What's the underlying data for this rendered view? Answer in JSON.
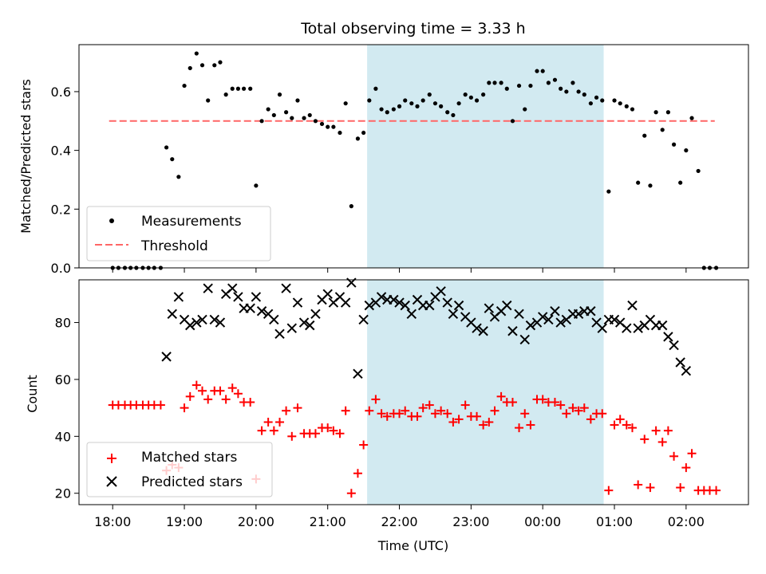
{
  "chart_data": [
    {
      "type": "scatter",
      "title": "Total observing time = 3.33 h",
      "ylabel": "Matched/Predicted stars",
      "ylim": [
        0,
        0.76
      ],
      "yticks": [
        "0.0",
        "0.2",
        "0.4",
        "0.6"
      ],
      "highlight_region": {
        "x": [
          3.55,
          6.85
        ],
        "color": "#add8e6"
      },
      "threshold": {
        "name": "Threshold",
        "value": 0.5,
        "x": [
          -0.05,
          8.4
        ],
        "color": "#ff6666"
      },
      "legend": {
        "position": "lower-left",
        "entries": [
          "Measurements",
          "Threshold"
        ]
      },
      "series": [
        {
          "name": "Measurements",
          "color": "#000000",
          "x": [
            0.0,
            0.08,
            0.17,
            0.25,
            0.33,
            0.42,
            0.5,
            0.58,
            0.67,
            0.75,
            0.83,
            0.92,
            1.0,
            1.08,
            1.17,
            1.25,
            1.33,
            1.42,
            1.5,
            1.58,
            1.67,
            1.75,
            1.83,
            1.92,
            2.0,
            2.08,
            2.17,
            2.25,
            2.33,
            2.42,
            2.5,
            2.58,
            2.67,
            2.75,
            2.83,
            2.92,
            3.0,
            3.08,
            3.17,
            3.25,
            3.33,
            3.42,
            3.5,
            3.58,
            3.67,
            3.75,
            3.83,
            3.92,
            4.0,
            4.08,
            4.17,
            4.25,
            4.33,
            4.42,
            4.5,
            4.58,
            4.67,
            4.75,
            4.83,
            4.92,
            5.0,
            5.08,
            5.17,
            5.25,
            5.33,
            5.42,
            5.5,
            5.58,
            5.67,
            5.75,
            5.83,
            5.92,
            6.0,
            6.08,
            6.17,
            6.25,
            6.33,
            6.42,
            6.5,
            6.58,
            6.67,
            6.75,
            6.83,
            6.92,
            7.0,
            7.08,
            7.17,
            7.25,
            7.33,
            7.42,
            7.5,
            7.58,
            7.67,
            7.75,
            7.83,
            7.92,
            8.0,
            8.08,
            8.17,
            8.25,
            8.33,
            8.42
          ],
          "y": [
            0,
            0,
            0,
            0,
            0,
            0,
            0,
            0,
            0,
            0.41,
            0.37,
            0.31,
            0.62,
            0.68,
            0.73,
            0.69,
            0.57,
            0.69,
            0.7,
            0.59,
            0.61,
            0.61,
            0.61,
            0.61,
            0.28,
            0.5,
            0.54,
            0.52,
            0.59,
            0.53,
            0.51,
            0.57,
            0.51,
            0.52,
            0.5,
            0.49,
            0.48,
            0.48,
            0.46,
            0.56,
            0.21,
            0.44,
            0.46,
            0.57,
            0.61,
            0.54,
            0.53,
            0.54,
            0.55,
            0.57,
            0.56,
            0.55,
            0.57,
            0.59,
            0.56,
            0.55,
            0.53,
            0.52,
            0.56,
            0.59,
            0.58,
            0.57,
            0.59,
            0.63,
            0.63,
            0.63,
            0.61,
            0.5,
            0.62,
            0.54,
            0.62,
            0.67,
            0.67,
            0.63,
            0.64,
            0.61,
            0.6,
            0.63,
            0.6,
            0.59,
            0.56,
            0.58,
            0.57,
            0.26,
            0.57,
            0.56,
            0.55,
            0.54,
            0.29,
            0.45,
            0.28,
            0.53,
            0.47,
            0.53,
            0.42,
            0.29,
            0.4,
            0.51,
            0.33,
            0,
            0,
            0
          ]
        }
      ]
    },
    {
      "type": "scatter",
      "xlabel": "Time (UTC)",
      "ylabel": "Count",
      "ylim": [
        16,
        95
      ],
      "yticks": [
        "20",
        "40",
        "60",
        "80"
      ],
      "xticks": [
        "18:00",
        "19:00",
        "20:00",
        "21:00",
        "22:00",
        "23:00",
        "00:00",
        "01:00",
        "02:00"
      ],
      "xlim": [
        -0.47,
        8.87
      ],
      "highlight_region": {
        "x": [
          3.55,
          6.85
        ],
        "color": "#add8e6"
      },
      "legend": {
        "position": "lower-left",
        "entries": [
          "Matched stars",
          "Predicted stars"
        ]
      },
      "series": [
        {
          "name": "Matched stars",
          "marker": "+",
          "color": "#ff0000",
          "x": [
            0.0,
            0.08,
            0.17,
            0.25,
            0.33,
            0.42,
            0.5,
            0.58,
            0.67,
            0.75,
            0.83,
            0.92,
            1.0,
            1.08,
            1.17,
            1.25,
            1.33,
            1.42,
            1.5,
            1.58,
            1.67,
            1.75,
            1.83,
            1.92,
            2.0,
            2.08,
            2.17,
            2.25,
            2.33,
            2.42,
            2.5,
            2.58,
            2.67,
            2.75,
            2.83,
            2.92,
            3.0,
            3.08,
            3.17,
            3.25,
            3.33,
            3.42,
            3.5,
            3.58,
            3.67,
            3.75,
            3.83,
            3.92,
            4.0,
            4.08,
            4.17,
            4.25,
            4.33,
            4.42,
            4.5,
            4.58,
            4.67,
            4.75,
            4.83,
            4.92,
            5.0,
            5.08,
            5.17,
            5.25,
            5.33,
            5.42,
            5.5,
            5.58,
            5.67,
            5.75,
            5.83,
            5.92,
            6.0,
            6.08,
            6.17,
            6.25,
            6.33,
            6.42,
            6.5,
            6.58,
            6.67,
            6.75,
            6.83,
            6.92,
            7.0,
            7.08,
            7.17,
            7.25,
            7.33,
            7.42,
            7.5,
            7.58,
            7.67,
            7.75,
            7.83,
            7.92,
            8.0,
            8.08,
            8.17,
            8.25,
            8.33,
            8.42
          ],
          "y": [
            51,
            51,
            51,
            51,
            51,
            51,
            51,
            51,
            51,
            28,
            30,
            29,
            50,
            54,
            58,
            56,
            53,
            56,
            56,
            53,
            57,
            55,
            52,
            52,
            25,
            42,
            45,
            42,
            45,
            49,
            40,
            50,
            41,
            41,
            41,
            43,
            43,
            42,
            41,
            49,
            20,
            27,
            37,
            49,
            53,
            48,
            47,
            48,
            48,
            49,
            47,
            47,
            50,
            51,
            48,
            49,
            48,
            45,
            46,
            51,
            47,
            47,
            44,
            45,
            49,
            54,
            52,
            52,
            43,
            48,
            44,
            53,
            53,
            52,
            52,
            51,
            48,
            50,
            49,
            50,
            46,
            48,
            48,
            21,
            44,
            46,
            44,
            43,
            23,
            39,
            22,
            42,
            38,
            42,
            33,
            22,
            29,
            34,
            21,
            21,
            21,
            21
          ]
        },
        {
          "name": "Predicted stars",
          "marker": "x",
          "color": "#000000",
          "x": [
            0.0,
            0.08,
            0.17,
            0.25,
            0.33,
            0.42,
            0.5,
            0.58,
            0.67,
            0.75,
            0.83,
            0.92,
            1.0,
            1.08,
            1.17,
            1.25,
            1.33,
            1.42,
            1.5,
            1.58,
            1.67,
            1.75,
            1.83,
            1.92,
            2.0,
            2.08,
            2.17,
            2.25,
            2.33,
            2.42,
            2.5,
            2.58,
            2.67,
            2.75,
            2.83,
            2.92,
            3.0,
            3.08,
            3.17,
            3.25,
            3.33,
            3.42,
            3.5,
            3.58,
            3.67,
            3.75,
            3.83,
            3.92,
            4.0,
            4.08,
            4.17,
            4.25,
            4.33,
            4.42,
            4.5,
            4.58,
            4.67,
            4.75,
            4.83,
            4.92,
            5.0,
            5.08,
            5.17,
            5.25,
            5.33,
            5.42,
            5.5,
            5.58,
            5.67,
            5.75,
            5.83,
            5.92,
            6.0,
            6.08,
            6.17,
            6.25,
            6.33,
            6.42,
            6.5,
            6.58,
            6.67,
            6.75,
            6.83,
            6.92,
            7.0,
            7.08,
            7.17,
            7.25,
            7.33,
            7.42,
            7.5,
            7.58,
            7.67,
            7.75,
            7.83,
            7.92,
            8.0,
            8.08,
            8.17,
            8.25,
            8.33,
            8.42
          ],
          "y": [
            null,
            null,
            null,
            null,
            null,
            null,
            null,
            null,
            null,
            68,
            83,
            89,
            81,
            79,
            80,
            81,
            92,
            81,
            80,
            90,
            92,
            89,
            85,
            85,
            89,
            84,
            83,
            81,
            76,
            92,
            78,
            87,
            80,
            79,
            83,
            88,
            90,
            87,
            89,
            87,
            94,
            62,
            81,
            86,
            87,
            89,
            88,
            88,
            87,
            86,
            83,
            88,
            86,
            86,
            89,
            91,
            87,
            83,
            86,
            82,
            80,
            78,
            77,
            85,
            82,
            84,
            86,
            77,
            83,
            74,
            79,
            80,
            82,
            81,
            84,
            80,
            81,
            83,
            83,
            84,
            84,
            80,
            78,
            81,
            81,
            80,
            78,
            86,
            78,
            79,
            81,
            79,
            79,
            75,
            72,
            66,
            63,
            null,
            null,
            null,
            null,
            null
          ]
        }
      ]
    }
  ]
}
